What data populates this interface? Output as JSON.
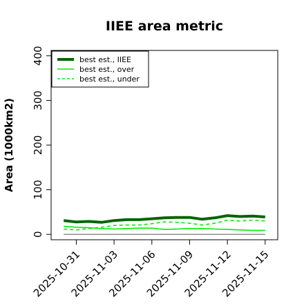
{
  "chart_data": {
    "type": "line",
    "title": "IIEE area metric",
    "xlabel": "",
    "ylabel": "Area (1000km2)",
    "ylim": [
      -12,
      412
    ],
    "xlim": [
      "2025-10-29",
      "2025-11-16"
    ],
    "yticks": [
      0,
      100,
      200,
      300,
      400
    ],
    "xticks": [
      "2025-10-31",
      "2025-11-03",
      "2025-11-06",
      "2025-11-09",
      "2025-11-12",
      "2025-11-15"
    ],
    "grid": false,
    "legend_position": "top-left",
    "x": [
      "2025-10-30",
      "2025-10-31",
      "2025-11-01",
      "2025-11-02",
      "2025-11-03",
      "2025-11-04",
      "2025-11-05",
      "2025-11-06",
      "2025-11-07",
      "2025-11-08",
      "2025-11-09",
      "2025-11-10",
      "2025-11-11",
      "2025-11-12",
      "2025-11-13",
      "2025-11-14",
      "2025-11-15"
    ],
    "series": [
      {
        "name": "best est., IIEE",
        "color": "#006400",
        "style": "solid",
        "width": 4,
        "values": [
          31,
          28,
          29,
          27,
          31,
          33,
          33,
          35,
          37,
          38,
          38,
          34,
          37,
          42,
          40,
          41,
          39
        ]
      },
      {
        "name": "best est., over",
        "color": "#00ee00",
        "style": "solid",
        "width": 1.6,
        "values": [
          18,
          16,
          15,
          13,
          12,
          13,
          14,
          14,
          11,
          12,
          13,
          13,
          12,
          11,
          10,
          9,
          9
        ]
      },
      {
        "name": "best est., under",
        "color": "#00ee00",
        "style": "dashed",
        "width": 1.6,
        "values": [
          12,
          10,
          13,
          16,
          20,
          21,
          21,
          24,
          28,
          27,
          25,
          21,
          25,
          32,
          30,
          32,
          30
        ]
      }
    ],
    "baseline": {
      "value": 0,
      "color": "#777777"
    }
  }
}
